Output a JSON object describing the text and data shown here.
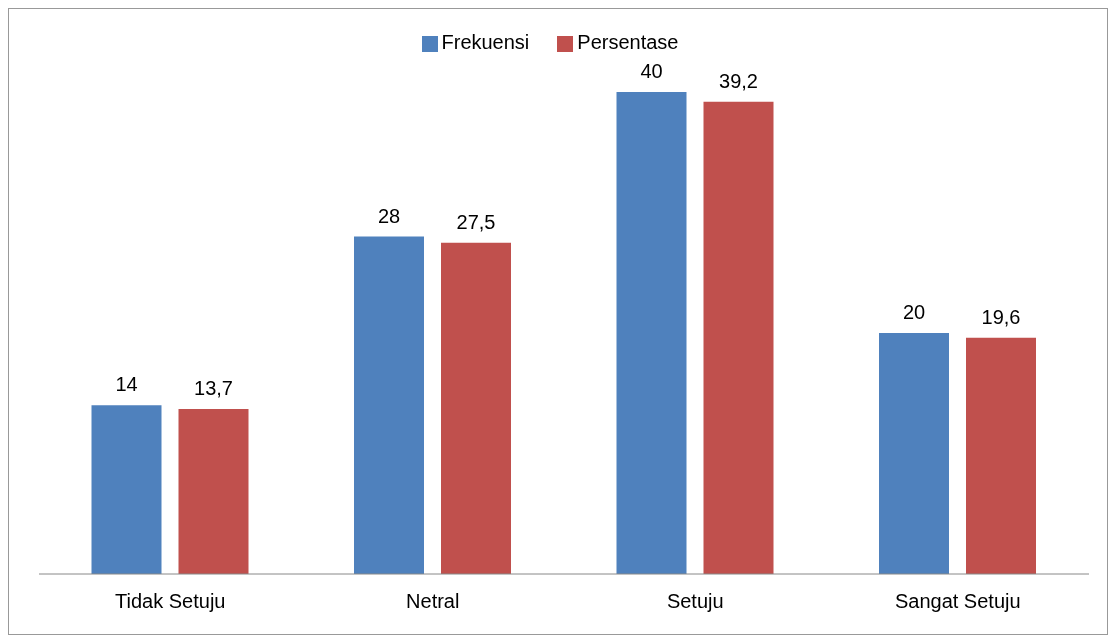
{
  "chart_data": {
    "type": "bar",
    "categories": [
      "Tidak Setuju",
      "Netral",
      "Setuju",
      "Sangat Setuju"
    ],
    "series": [
      {
        "name": "Frekuensi",
        "color": "#4f81bd",
        "values": [
          14,
          28,
          40,
          20
        ],
        "value_labels": [
          "14",
          "28",
          "40",
          "20"
        ]
      },
      {
        "name": "Persentase",
        "color": "#c0504d",
        "values": [
          13.7,
          27.5,
          39.2,
          19.6
        ],
        "value_labels": [
          "13,7",
          "27,5",
          "39,2",
          "19,6"
        ]
      }
    ],
    "legend": "top",
    "grid": false
  }
}
